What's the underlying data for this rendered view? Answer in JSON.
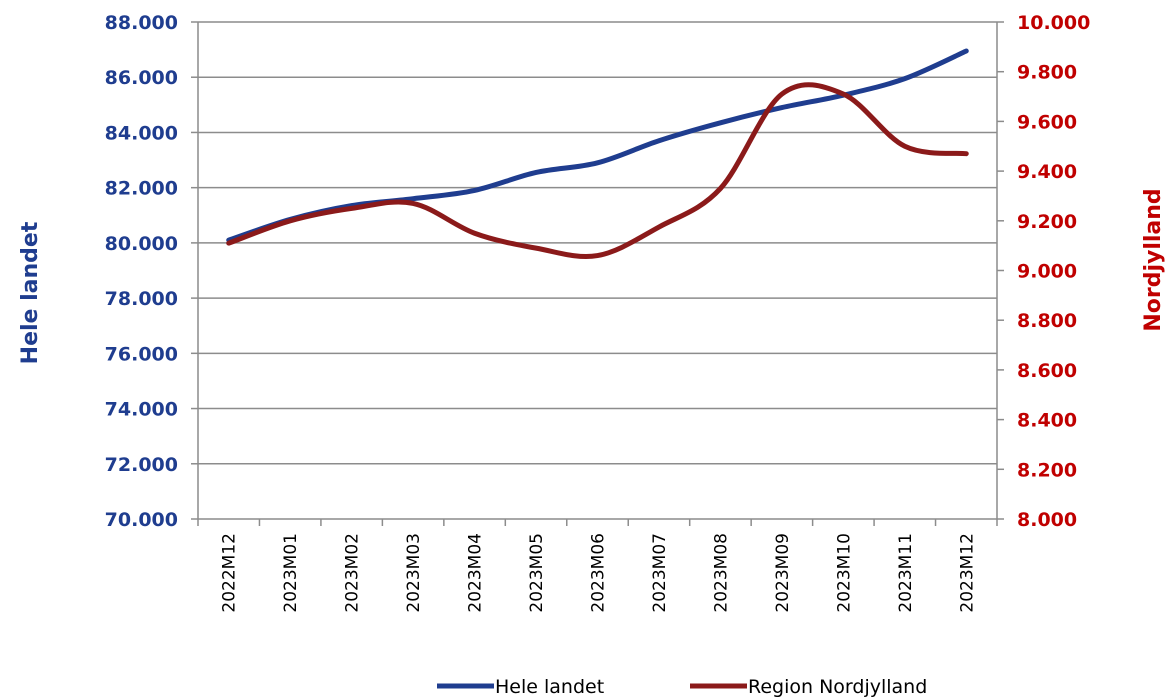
{
  "chart_data": {
    "type": "line",
    "title": "",
    "categories": [
      "2022M12",
      "2023M01",
      "2023M02",
      "2023M03",
      "2023M04",
      "2023M05",
      "2023M06",
      "2023M07",
      "2023M08",
      "2023M09",
      "2023M10",
      "2023M11",
      "2023M12"
    ],
    "y_left": {
      "label": "Hele landet",
      "range": [
        70000,
        88000
      ],
      "ticks": [
        70000,
        72000,
        74000,
        76000,
        78000,
        80000,
        82000,
        84000,
        86000,
        88000
      ],
      "tick_labels": [
        "70.000",
        "72.000",
        "74.000",
        "76.000",
        "78.000",
        "80.000",
        "82.000",
        "84.000",
        "86.000",
        "88.000"
      ],
      "color": "#1f3d8f"
    },
    "y_right": {
      "label": "Nordjylland",
      "range": [
        8000,
        10000
      ],
      "ticks": [
        8000,
        8200,
        8400,
        8600,
        8800,
        9000,
        9200,
        9400,
        9600,
        9800,
        10000
      ],
      "tick_labels": [
        "8.000",
        "8.200",
        "8.400",
        "8.600",
        "8.800",
        "9.000",
        "9.200",
        "9.400",
        "9.600",
        "9.800",
        "10.000"
      ],
      "color": "#c00000"
    },
    "series": [
      {
        "name": "Hele landet",
        "axis": "left",
        "color": "#1f3d8f",
        "values": [
          80100,
          80850,
          81350,
          81600,
          81900,
          82550,
          82900,
          83700,
          84350,
          84900,
          85350,
          85950,
          86950
        ]
      },
      {
        "name": "Region Nordjylland",
        "axis": "right",
        "color": "#8b1a1a",
        "values": [
          9110,
          9200,
          9250,
          9270,
          9150,
          9090,
          9060,
          9175,
          9330,
          9710,
          9710,
          9500,
          9470
        ]
      }
    ],
    "grid": true,
    "legend": "bottom"
  }
}
